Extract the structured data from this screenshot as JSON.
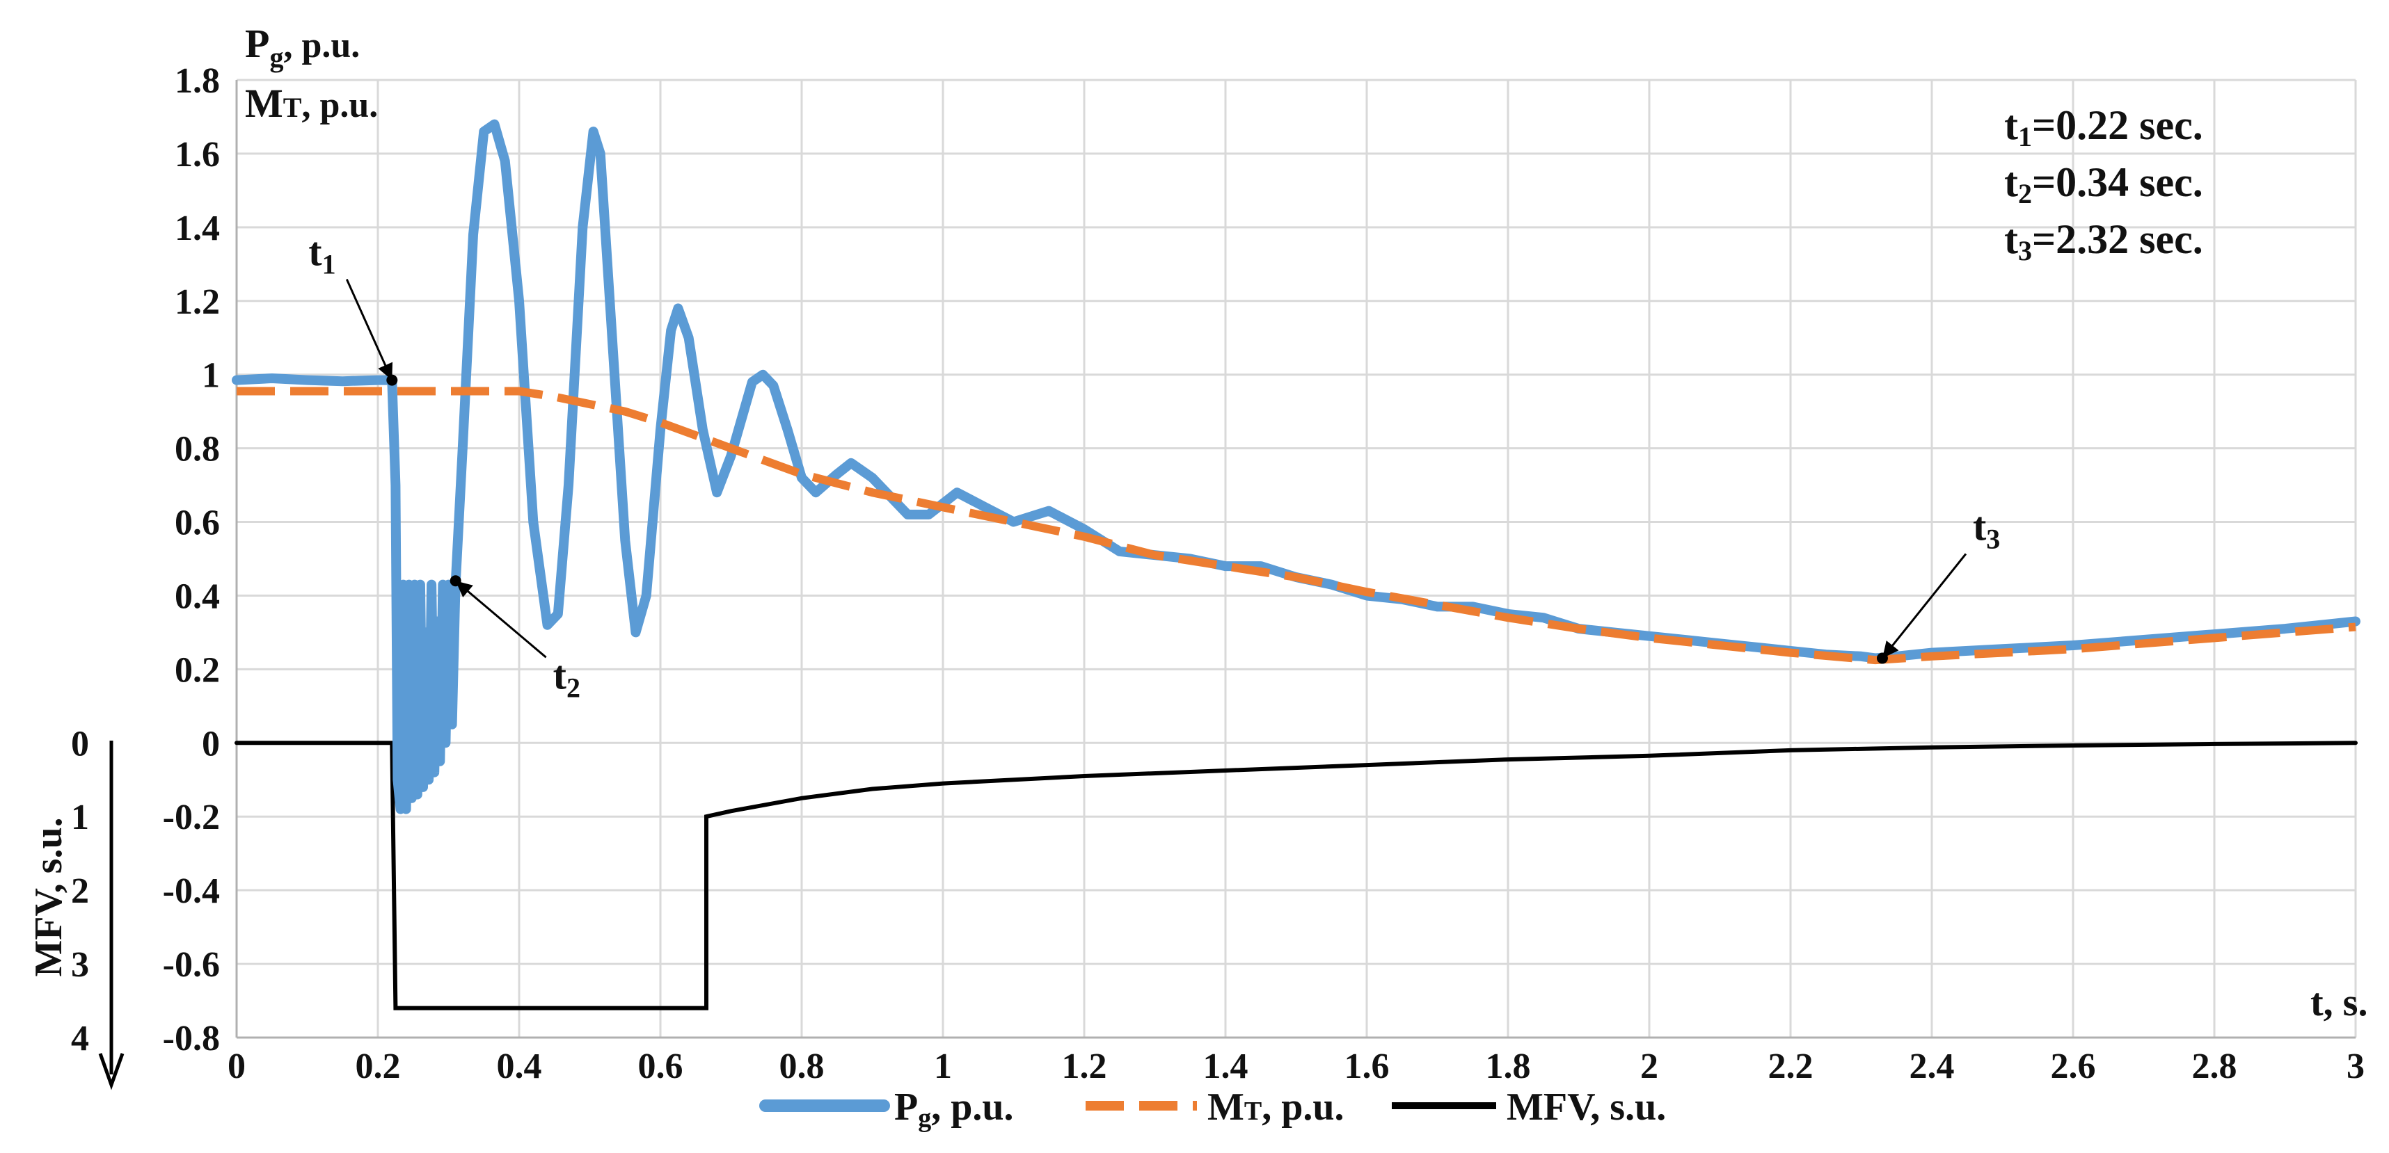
{
  "chart_data": {
    "type": "line",
    "x_axis": {
      "label": "t, s.",
      "ticks": [
        "0",
        "0.2",
        "0.4",
        "0.6",
        "0.8",
        "1",
        "1.2",
        "1.4",
        "1.6",
        "1.8",
        "2",
        "2.2",
        "2.4",
        "2.6",
        "2.8",
        "3"
      ],
      "range": [
        0,
        3
      ],
      "grid": true
    },
    "y_axis_left": {
      "ticks": [
        "-0.8",
        "-0.6",
        "-0.4",
        "-0.2",
        "0",
        "0.2",
        "0.4",
        "0.6",
        "0.8",
        "1",
        "1.2",
        "1.4",
        "1.6",
        "1.8"
      ],
      "range": [
        -0.8,
        1.8
      ],
      "labels": {
        "pg_main": "P",
        "pg_sub": "g",
        "pg_unit": ", p.u.",
        "mt_main": "M",
        "mt_sub": "T",
        "mt_unit": ", p.u."
      },
      "grid": true
    },
    "y_axis_mfv": {
      "label": "MFV,  s.u.",
      "ticks": [
        "0",
        "1",
        "2",
        "3",
        "4"
      ]
    },
    "series": [
      {
        "name": "Pg, p.u.",
        "legend_main": "P",
        "legend_sub": "g",
        "legend_rest": ", p.u.",
        "color": "#5b9bd5",
        "style": "solid",
        "points": [
          [
            0,
            0.985
          ],
          [
            0.05,
            0.99
          ],
          [
            0.1,
            0.985
          ],
          [
            0.15,
            0.982
          ],
          [
            0.2,
            0.985
          ],
          [
            0.22,
            0.985
          ],
          [
            0.225,
            0.7
          ],
          [
            0.228,
            -0.1
          ],
          [
            0.232,
            -0.18
          ],
          [
            0.236,
            0.43
          ],
          [
            0.24,
            -0.18
          ],
          [
            0.244,
            0.43
          ],
          [
            0.248,
            -0.15
          ],
          [
            0.252,
            0.43
          ],
          [
            0.256,
            -0.14
          ],
          [
            0.26,
            0.43
          ],
          [
            0.264,
            -0.12
          ],
          [
            0.268,
            0.3
          ],
          [
            0.272,
            -0.1
          ],
          [
            0.276,
            0.43
          ],
          [
            0.28,
            -0.08
          ],
          [
            0.284,
            0.33
          ],
          [
            0.288,
            -0.05
          ],
          [
            0.292,
            0.43
          ],
          [
            0.296,
            0.0
          ],
          [
            0.3,
            0.43
          ],
          [
            0.305,
            0.05
          ],
          [
            0.31,
            0.43
          ],
          [
            0.32,
            0.8
          ],
          [
            0.335,
            1.38
          ],
          [
            0.35,
            1.66
          ],
          [
            0.365,
            1.68
          ],
          [
            0.38,
            1.58
          ],
          [
            0.4,
            1.2
          ],
          [
            0.42,
            0.6
          ],
          [
            0.44,
            0.32
          ],
          [
            0.455,
            0.35
          ],
          [
            0.47,
            0.7
          ],
          [
            0.49,
            1.4
          ],
          [
            0.505,
            1.66
          ],
          [
            0.515,
            1.6
          ],
          [
            0.53,
            1.15
          ],
          [
            0.55,
            0.55
          ],
          [
            0.565,
            0.3
          ],
          [
            0.58,
            0.4
          ],
          [
            0.6,
            0.85
          ],
          [
            0.615,
            1.12
          ],
          [
            0.625,
            1.18
          ],
          [
            0.64,
            1.1
          ],
          [
            0.66,
            0.85
          ],
          [
            0.68,
            0.68
          ],
          [
            0.7,
            0.78
          ],
          [
            0.73,
            0.98
          ],
          [
            0.745,
            1.0
          ],
          [
            0.76,
            0.97
          ],
          [
            0.78,
            0.85
          ],
          [
            0.8,
            0.72
          ],
          [
            0.82,
            0.68
          ],
          [
            0.85,
            0.73
          ],
          [
            0.87,
            0.76
          ],
          [
            0.9,
            0.72
          ],
          [
            0.95,
            0.62
          ],
          [
            0.98,
            0.62
          ],
          [
            1.02,
            0.68
          ],
          [
            1.06,
            0.64
          ],
          [
            1.1,
            0.6
          ],
          [
            1.15,
            0.63
          ],
          [
            1.2,
            0.58
          ],
          [
            1.25,
            0.52
          ],
          [
            1.3,
            0.51
          ],
          [
            1.35,
            0.5
          ],
          [
            1.4,
            0.48
          ],
          [
            1.45,
            0.48
          ],
          [
            1.5,
            0.45
          ],
          [
            1.55,
            0.43
          ],
          [
            1.6,
            0.4
          ],
          [
            1.65,
            0.39
          ],
          [
            1.7,
            0.37
          ],
          [
            1.75,
            0.37
          ],
          [
            1.8,
            0.35
          ],
          [
            1.85,
            0.34
          ],
          [
            1.9,
            0.31
          ],
          [
            1.95,
            0.3
          ],
          [
            2.0,
            0.29
          ],
          [
            2.05,
            0.28
          ],
          [
            2.1,
            0.27
          ],
          [
            2.15,
            0.26
          ],
          [
            2.2,
            0.25
          ],
          [
            2.25,
            0.24
          ],
          [
            2.3,
            0.235
          ],
          [
            2.32,
            0.23
          ],
          [
            2.35,
            0.235
          ],
          [
            2.4,
            0.245
          ],
          [
            2.5,
            0.255
          ],
          [
            2.6,
            0.265
          ],
          [
            2.7,
            0.28
          ],
          [
            2.8,
            0.295
          ],
          [
            2.9,
            0.31
          ],
          [
            3.0,
            0.33
          ]
        ]
      },
      {
        "name": "MT, p.u.",
        "legend_main": "M",
        "legend_sub": "T",
        "legend_rest": ", p.u.",
        "color": "#ed7d31",
        "style": "dashed",
        "points": [
          [
            0,
            0.955
          ],
          [
            0.2,
            0.955
          ],
          [
            0.4,
            0.955
          ],
          [
            0.45,
            0.94
          ],
          [
            0.5,
            0.92
          ],
          [
            0.55,
            0.9
          ],
          [
            0.6,
            0.87
          ],
          [
            0.7,
            0.8
          ],
          [
            0.8,
            0.73
          ],
          [
            0.9,
            0.68
          ],
          [
            1.0,
            0.64
          ],
          [
            1.1,
            0.6
          ],
          [
            1.2,
            0.56
          ],
          [
            1.3,
            0.51
          ],
          [
            1.4,
            0.48
          ],
          [
            1.5,
            0.45
          ],
          [
            1.6,
            0.41
          ],
          [
            1.7,
            0.375
          ],
          [
            1.8,
            0.34
          ],
          [
            1.9,
            0.31
          ],
          [
            2.0,
            0.285
          ],
          [
            2.1,
            0.265
          ],
          [
            2.2,
            0.245
          ],
          [
            2.32,
            0.225
          ],
          [
            2.4,
            0.235
          ],
          [
            2.5,
            0.245
          ],
          [
            2.6,
            0.255
          ],
          [
            2.7,
            0.27
          ],
          [
            2.8,
            0.285
          ],
          [
            2.9,
            0.3
          ],
          [
            3.0,
            0.315
          ]
        ]
      },
      {
        "name": "MFV,  s.u.",
        "legend_main": "MFV,  s.u.",
        "legend_sub": "",
        "legend_rest": "",
        "color": "#000000",
        "style": "solid",
        "points": [
          [
            0,
            0
          ],
          [
            0.22,
            0
          ],
          [
            0.225,
            -0.72
          ],
          [
            0.665,
            -0.72
          ],
          [
            0.665,
            -0.2
          ],
          [
            0.7,
            -0.185
          ],
          [
            0.8,
            -0.15
          ],
          [
            0.9,
            -0.125
          ],
          [
            1.0,
            -0.11
          ],
          [
            1.2,
            -0.09
          ],
          [
            1.4,
            -0.075
          ],
          [
            1.6,
            -0.06
          ],
          [
            1.8,
            -0.045
          ],
          [
            2.0,
            -0.035
          ],
          [
            2.2,
            -0.02
          ],
          [
            2.4,
            -0.012
          ],
          [
            2.6,
            -0.007
          ],
          [
            2.8,
            -0.003
          ],
          [
            3.0,
            0
          ]
        ]
      }
    ],
    "annotations": [
      {
        "main": "t",
        "sub": "1",
        "x": 0.22,
        "y": 0.985
      },
      {
        "main": "t",
        "sub": "2",
        "x": 0.31,
        "y": 0.44
      },
      {
        "main": "t",
        "sub": "3",
        "x": 2.33,
        "y": 0.23
      }
    ],
    "info_box": [
      {
        "main": "t",
        "sub": "1",
        "rest": "=0.22 sec."
      },
      {
        "main": "t",
        "sub": "2",
        "rest": "=0.34 sec."
      },
      {
        "main": "t",
        "sub": "3",
        "rest": "=2.32 sec."
      }
    ],
    "legend_position": "bottom"
  }
}
